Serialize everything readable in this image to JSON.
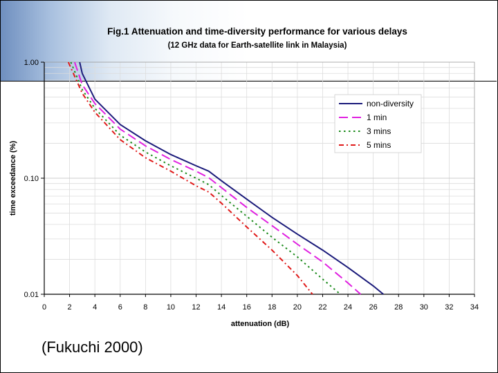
{
  "slide": {
    "caption": "(Fukuchi 2000)"
  },
  "chart_data": {
    "type": "line",
    "title": "Fig.1 Attenuation and time-diversity performance for various delays",
    "subtitle": "(12 GHz data for Earth-satellite link in Malaysia)",
    "xlabel": "attenuation (dB)",
    "ylabel": "time exceedance (%)",
    "xlim": [
      0,
      34
    ],
    "ylim": [
      0.01,
      1.0
    ],
    "yscale": "log",
    "x_ticks": [
      0,
      2,
      4,
      6,
      8,
      10,
      12,
      14,
      16,
      18,
      20,
      22,
      24,
      26,
      28,
      30,
      32,
      34
    ],
    "y_ticks": [
      {
        "value": 1.0,
        "label": "1.00"
      },
      {
        "value": 0.1,
        "label": "0.10"
      },
      {
        "value": 0.01,
        "label": "0.01"
      }
    ],
    "grid": true,
    "legend_position": "top-right",
    "series": [
      {
        "name": "non-diversity",
        "color": "#1a1a7a",
        "dash": "solid",
        "points": [
          [
            2.8,
            1.0
          ],
          [
            3.0,
            0.8
          ],
          [
            4.0,
            0.48
          ],
          [
            6.0,
            0.29
          ],
          [
            8.0,
            0.21
          ],
          [
            10.0,
            0.16
          ],
          [
            12.0,
            0.128
          ],
          [
            13.0,
            0.115
          ],
          [
            14.0,
            0.095
          ],
          [
            16.0,
            0.066
          ],
          [
            18.0,
            0.046
          ],
          [
            20.0,
            0.033
          ],
          [
            22.0,
            0.024
          ],
          [
            24.0,
            0.017
          ],
          [
            26.0,
            0.0118
          ],
          [
            26.8,
            0.01
          ]
        ]
      },
      {
        "name": "1 min",
        "color": "#e020e0",
        "dash": "long-dash",
        "points": [
          [
            2.4,
            1.0
          ],
          [
            3.0,
            0.64
          ],
          [
            4.0,
            0.44
          ],
          [
            6.0,
            0.265
          ],
          [
            8.0,
            0.19
          ],
          [
            10.0,
            0.145
          ],
          [
            12.0,
            0.115
          ],
          [
            13.0,
            0.101
          ],
          [
            14.0,
            0.083
          ],
          [
            16.0,
            0.056
          ],
          [
            18.0,
            0.039
          ],
          [
            20.0,
            0.027
          ],
          [
            22.0,
            0.019
          ],
          [
            24.0,
            0.0125
          ],
          [
            25.0,
            0.01
          ]
        ]
      },
      {
        "name": "3 mins",
        "color": "#1a8a1a",
        "dash": "dotted",
        "points": [
          [
            2.1,
            1.0
          ],
          [
            3.0,
            0.58
          ],
          [
            4.0,
            0.4
          ],
          [
            6.0,
            0.235
          ],
          [
            8.0,
            0.168
          ],
          [
            10.0,
            0.128
          ],
          [
            12.0,
            0.1
          ],
          [
            13.0,
            0.088
          ],
          [
            14.0,
            0.071
          ],
          [
            16.0,
            0.047
          ],
          [
            18.0,
            0.031
          ],
          [
            20.0,
            0.021
          ],
          [
            22.0,
            0.0135
          ],
          [
            23.4,
            0.01
          ]
        ]
      },
      {
        "name": "5 mins",
        "color": "#e01818",
        "dash": "dash-dot",
        "points": [
          [
            1.9,
            1.0
          ],
          [
            3.0,
            0.54
          ],
          [
            4.0,
            0.37
          ],
          [
            6.0,
            0.215
          ],
          [
            8.0,
            0.15
          ],
          [
            10.0,
            0.115
          ],
          [
            12.0,
            0.086
          ],
          [
            13.0,
            0.076
          ],
          [
            14.0,
            0.061
          ],
          [
            16.0,
            0.038
          ],
          [
            18.0,
            0.024
          ],
          [
            20.0,
            0.0145
          ],
          [
            21.2,
            0.01
          ]
        ]
      }
    ]
  }
}
